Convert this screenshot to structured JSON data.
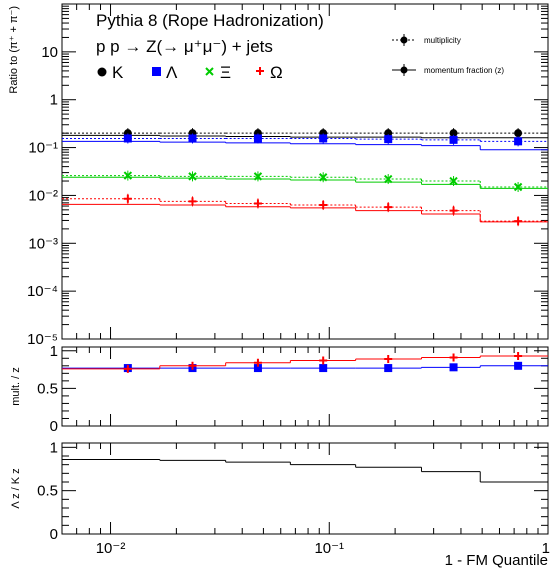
{
  "chart_data": [
    {
      "type": "line",
      "panel": "main",
      "title_lines": [
        "Pythia 8 (Rope Hadronization)",
        "p p → Z(→ μ⁺μ⁻) + jets"
      ],
      "ylabel": "Ratio to (π⁺ + π⁻)",
      "xlabel": "1 - FM Quantile",
      "xscale": "log",
      "yscale": "log",
      "xlim": [
        0.006,
        1.0
      ],
      "ylim": [
        1e-05,
        100
      ],
      "x_tick_labels": [
        "10⁻²",
        "10⁻¹",
        "1"
      ],
      "y_tick_labels": [
        "10⁻⁵",
        "10⁻⁴",
        "10⁻³",
        "10⁻²",
        "10⁻¹",
        "1",
        "10"
      ],
      "bin_edges": [
        0.006,
        0.0168,
        0.0336,
        0.0664,
        0.132,
        0.264,
        0.49,
        1.0
      ],
      "bin_centers": [
        0.012,
        0.0237,
        0.0472,
        0.0938,
        0.186,
        0.37,
        0.73
      ],
      "legend": {
        "species": [
          {
            "symbol": "•",
            "label": "K",
            "color": "#000000"
          },
          {
            "symbol": "■",
            "label": "Λ",
            "color": "#0000ff"
          },
          {
            "symbol": "✕",
            "label": "Ξ",
            "color": "#00cc00"
          },
          {
            "symbol": "+",
            "label": "Ω",
            "color": "#ff0000"
          }
        ],
        "styles": [
          {
            "label": "multiplicity",
            "line": "dotted"
          },
          {
            "label": "momentum fraction (z)",
            "line": "solid"
          }
        ]
      },
      "series": [
        {
          "name": "K",
          "color": "#000000",
          "marker": "circle",
          "multiplicity": [
            0.2,
            0.2,
            0.2,
            0.2,
            0.2,
            0.2,
            0.2
          ],
          "momentum_fraction": [
            0.18,
            0.175,
            0.17,
            0.165,
            0.165,
            0.16,
            0.16
          ]
        },
        {
          "name": "Λ",
          "color": "#0000ff",
          "marker": "square",
          "multiplicity": [
            0.155,
            0.155,
            0.155,
            0.155,
            0.15,
            0.145,
            0.135
          ],
          "momentum_fraction": [
            0.135,
            0.13,
            0.125,
            0.12,
            0.115,
            0.11,
            0.09
          ]
        },
        {
          "name": "Ξ",
          "color": "#00cc00",
          "marker": "x",
          "multiplicity": [
            0.026,
            0.025,
            0.025,
            0.024,
            0.022,
            0.02,
            0.015
          ],
          "momentum_fraction": [
            0.024,
            0.023,
            0.022,
            0.021,
            0.019,
            0.017,
            0.014
          ]
        },
        {
          "name": "Ω",
          "color": "#ff0000",
          "marker": "plus",
          "multiplicity": [
            0.0085,
            0.0075,
            0.0068,
            0.0063,
            0.0057,
            0.0048,
            0.0029
          ],
          "momentum_fraction": [
            0.0065,
            0.0063,
            0.0058,
            0.0055,
            0.0048,
            0.0041,
            0.0028
          ]
        }
      ]
    },
    {
      "type": "line",
      "panel": "ratio_mult_z",
      "ylabel": "mult. / z",
      "xscale": "log",
      "xlim": [
        0.006,
        1.0
      ],
      "ylim": [
        0,
        1.05
      ],
      "y_tick_labels": [
        "0",
        "0.5",
        "1"
      ],
      "series": [
        {
          "name": "Λ",
          "color": "#0000ff",
          "marker": "square",
          "values": [
            0.77,
            0.77,
            0.77,
            0.77,
            0.77,
            0.78,
            0.8
          ]
        },
        {
          "name": "Ω",
          "color": "#ff0000",
          "marker": "plus",
          "values": [
            0.76,
            0.8,
            0.84,
            0.87,
            0.89,
            0.91,
            0.93
          ]
        }
      ]
    },
    {
      "type": "line",
      "panel": "ratio_lambda_k",
      "ylabel": "Λ z / K z",
      "xscale": "log",
      "xlim": [
        0.006,
        1.0
      ],
      "ylim": [
        0,
        1.05
      ],
      "y_tick_labels": [
        "0",
        "0.5",
        "1"
      ],
      "series": [
        {
          "color": "#000000",
          "values": [
            0.86,
            0.85,
            0.83,
            0.8,
            0.77,
            0.72,
            0.6
          ]
        }
      ]
    }
  ]
}
